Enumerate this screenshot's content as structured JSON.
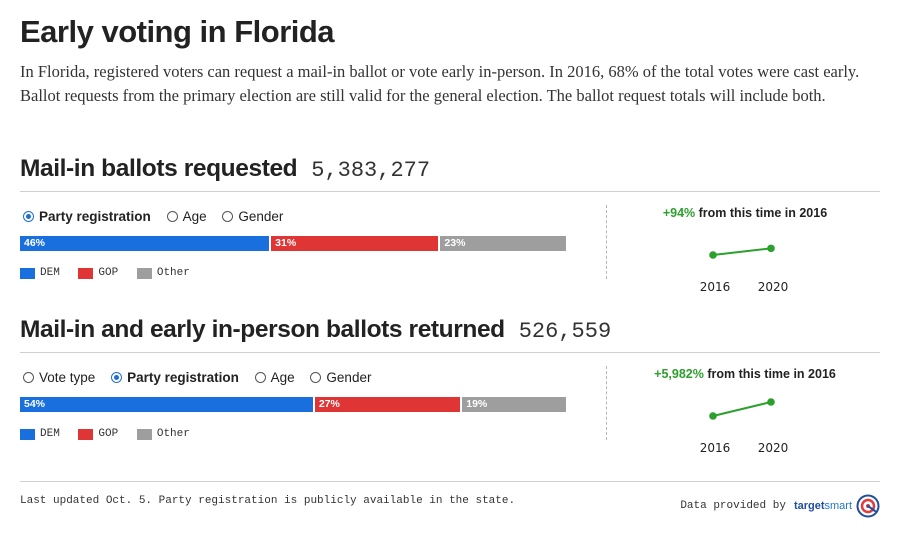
{
  "title": "Early voting in Florida",
  "intro": "In Florida, registered voters can request a mail-in ballot or vote early in-person. In 2016, 68% of the total votes were cast early. Ballot requests from the primary election are still valid for the general election. The ballot request totals will include both.",
  "colors": {
    "dem": "#1a6fdf",
    "gop": "#df3535",
    "other": "#9e9e9e",
    "accent": "#1f6fd6",
    "increase": "#2ca02c"
  },
  "sections": [
    {
      "title": "Mail-in ballots requested",
      "total": "5,383,277",
      "radios": [
        {
          "label": "Party registration",
          "checked": true
        },
        {
          "label": "Age",
          "checked": false
        },
        {
          "label": "Gender",
          "checked": false
        }
      ],
      "change": {
        "pct": "+94%",
        "text": " from this time in 2016"
      }
    },
    {
      "title": "Mail-in and early in-person ballots returned",
      "total": "526,559",
      "radios": [
        {
          "label": "Vote type",
          "checked": false
        },
        {
          "label": "Party registration",
          "checked": true
        },
        {
          "label": "Age",
          "checked": false
        },
        {
          "label": "Gender",
          "checked": false
        }
      ],
      "change": {
        "pct": "+5,982%",
        "text": " from this time in 2016"
      }
    }
  ],
  "chart_data": [
    {
      "type": "bar",
      "orientation": "horizontal-stacked",
      "title": "Mail-in ballots requested",
      "categories": [
        "DEM",
        "GOP",
        "Other"
      ],
      "values": [
        46,
        31,
        23
      ],
      "labels": [
        "46%",
        "31%",
        "23%"
      ],
      "unit": "%",
      "legend": [
        "DEM",
        "GOP",
        "Other"
      ]
    },
    {
      "type": "line",
      "title": "Mail-in ballots requested change",
      "x": [
        "2016",
        "2020"
      ],
      "y": [
        1.0,
        1.94
      ],
      "annotation": "+94% from this time in 2016"
    },
    {
      "type": "bar",
      "orientation": "horizontal-stacked",
      "title": "Mail-in and early in-person ballots returned",
      "categories": [
        "DEM",
        "GOP",
        "Other"
      ],
      "values": [
        54,
        27,
        19
      ],
      "labels": [
        "54%",
        "27%",
        "19%"
      ],
      "unit": "%",
      "legend": [
        "DEM",
        "GOP",
        "Other"
      ]
    },
    {
      "type": "line",
      "title": "Mail-in and early in-person ballots returned change",
      "x": [
        "2016",
        "2020"
      ],
      "y": [
        1.0,
        60.82
      ],
      "annotation": "+5,982% from this time in 2016"
    }
  ],
  "footer": {
    "note": "Last updated Oct. 5. Party registration is publicly available in the state.",
    "credit_prefix": "Data provided by",
    "brand_a": "target",
    "brand_b": "smart",
    "logo_icon": "targetsmart-logo-icon"
  }
}
